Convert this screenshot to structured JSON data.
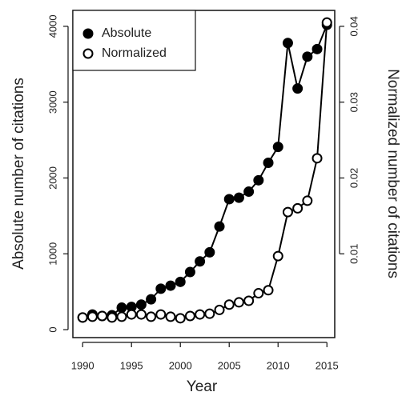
{
  "chart_data": {
    "type": "line",
    "x_label": "Year",
    "y_label": "Absolute number of citations",
    "y2_label": "Normalized number of citations",
    "x": [
      1990,
      1991,
      1992,
      1993,
      1994,
      1995,
      1996,
      1997,
      1998,
      1999,
      2000,
      2001,
      2002,
      2003,
      2004,
      2005,
      2006,
      2007,
      2008,
      2009,
      2010,
      2011,
      2012,
      2013,
      2014,
      2015
    ],
    "series": [
      {
        "name": "Absolute",
        "color": "#000000",
        "marker": "filled",
        "values": [
          160,
          200,
          180,
          190,
          290,
          300,
          330,
          400,
          540,
          580,
          630,
          760,
          900,
          1020,
          1360,
          1720,
          1740,
          1820,
          1970,
          2200,
          2410,
          3780,
          3180,
          3600,
          3700,
          4020
        ]
      },
      {
        "name": "Normalized",
        "color": "#000000",
        "marker": "open",
        "axis": "y2",
        "values": [
          0.0016,
          0.0017,
          0.0018,
          0.0016,
          0.0017,
          0.002,
          0.002,
          0.0017,
          0.002,
          0.0017,
          0.0015,
          0.0018,
          0.002,
          0.0021,
          0.0026,
          0.0033,
          0.0036,
          0.0038,
          0.0048,
          0.0052,
          0.0097,
          0.0155,
          0.016,
          0.017,
          0.0226,
          0.0405
        ]
      }
    ],
    "xlim": [
      1989,
      2015.8
    ],
    "xticks": [
      1990,
      1995,
      2000,
      2005,
      2010,
      2015
    ],
    "ylim": [
      -105,
      4210
    ],
    "yticks": [
      0,
      1000,
      2000,
      3000,
      4000
    ],
    "y2lim": [
      -0.00105,
      0.0421
    ],
    "y2ticks": [
      0.01,
      0.02,
      0.03,
      0.04
    ],
    "legend": "topleft"
  }
}
